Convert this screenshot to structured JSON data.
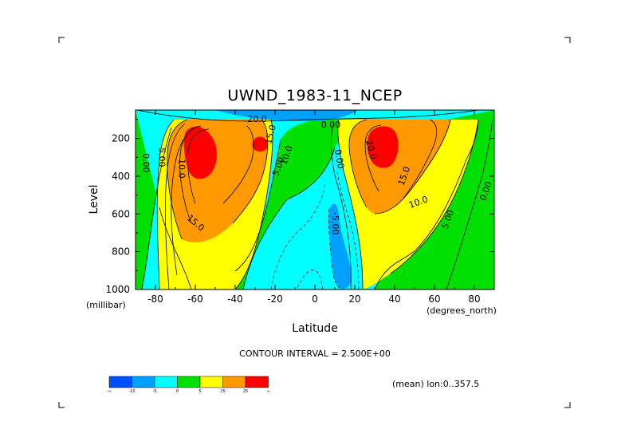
{
  "chart_data": {
    "type": "contour",
    "title": "UWND_1983-11_NCEP",
    "xlabel": "Latitude",
    "ylabel": "Level",
    "x_unit": "(degrees_north)",
    "y_unit": "(millibar)",
    "xlim": [
      -90,
      90
    ],
    "ylim": [
      1000,
      50
    ],
    "y_inverted": true,
    "x_ticks": [
      "-80",
      "-60",
      "-40",
      "-20",
      "0",
      "20",
      "40",
      "60",
      "80"
    ],
    "x_tick_values": [
      -80,
      -60,
      -40,
      -20,
      0,
      20,
      40,
      60,
      80
    ],
    "y_ticks": [
      "200",
      "400",
      "600",
      "800",
      "1000"
    ],
    "y_tick_values": [
      200,
      400,
      600,
      800,
      1000
    ],
    "contour_interval_text": "CONTOUR INTERVAL = 2.500E+00",
    "mean_note": "(mean) lon:0..357.5",
    "contour_labels": [
      {
        "text": "0.00",
        "x": -85,
        "y": 330,
        "rotate": 90
      },
      {
        "text": "5.00",
        "x": -77,
        "y": 300,
        "rotate": 90
      },
      {
        "text": "10.0",
        "x": -67,
        "y": 360,
        "rotate": 90
      },
      {
        "text": "15.0",
        "x": -60,
        "y": 650,
        "rotate": 40
      },
      {
        "text": "20.0",
        "x": -29,
        "y": 100,
        "rotate": 0
      },
      {
        "text": "15.0",
        "x": -22,
        "y": 180,
        "rotate": -75
      },
      {
        "text": "5.00",
        "x": -18,
        "y": 350,
        "rotate": -70
      },
      {
        "text": "10.0",
        "x": -14,
        "y": 290,
        "rotate": -70
      },
      {
        "text": "0.00",
        "x": 12,
        "y": 310,
        "rotate": 80
      },
      {
        "text": "-5.00",
        "x": 10,
        "y": 650,
        "rotate": 90
      },
      {
        "text": "20.0",
        "x": 28,
        "y": 260,
        "rotate": 75
      },
      {
        "text": "15.0",
        "x": 45,
        "y": 400,
        "rotate": -70
      },
      {
        "text": "10.0",
        "x": 52,
        "y": 540,
        "rotate": -20
      },
      {
        "text": "5.00",
        "x": 67,
        "y": 630,
        "rotate": -70
      },
      {
        "text": "0.00",
        "x": 86,
        "y": 480,
        "rotate": -70
      },
      {
        "text": "0.00",
        "x": 8,
        "y": 130,
        "rotate": 0
      }
    ],
    "colorbar": {
      "colors": [
        "#0050ff",
        "#00a0ff",
        "#00ffff",
        "#00e000",
        "#ffff00",
        "#ff9900",
        "#ff0000"
      ],
      "tick_labels": [
        "-∞",
        "-10",
        "-5",
        "0",
        "5",
        "15",
        "25",
        "∞"
      ]
    }
  }
}
